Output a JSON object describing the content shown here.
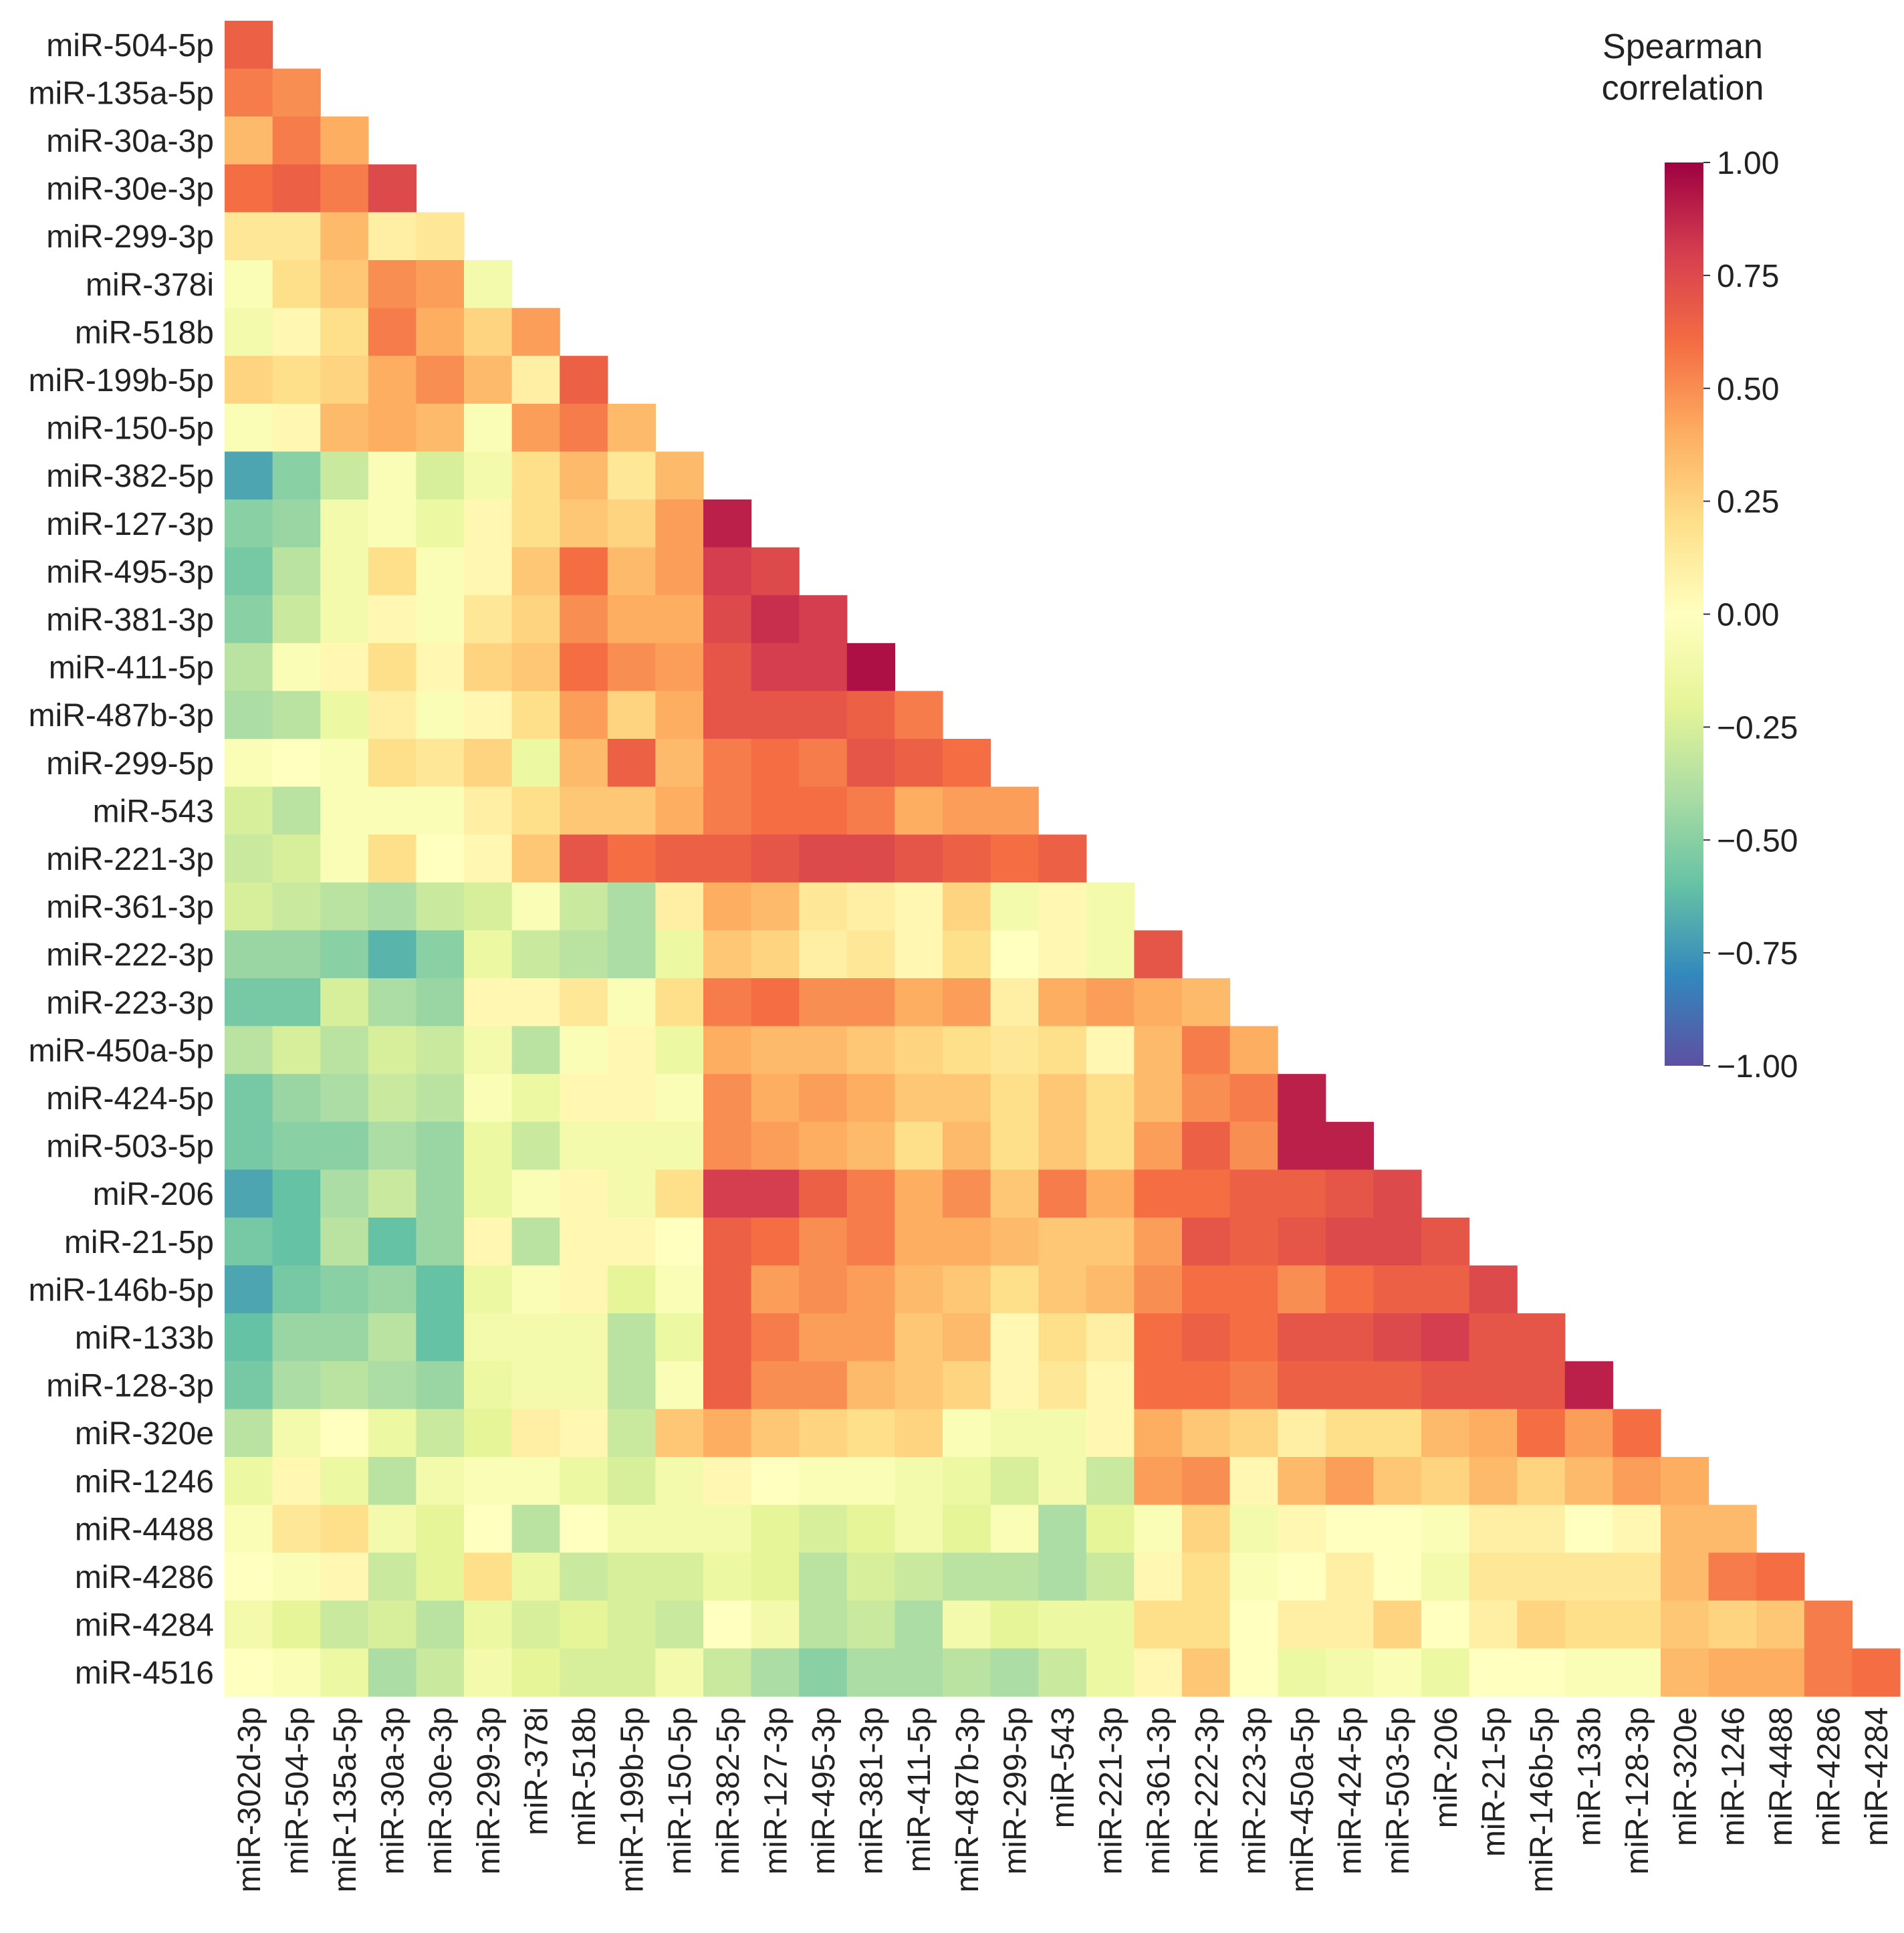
{
  "chart_data": {
    "type": "heatmap",
    "title": "",
    "colorbar": {
      "title_lines": [
        "Spearman",
        "correlation"
      ],
      "tick_labels": [
        "1.00",
        "0.75",
        "0.50",
        "0.25",
        "0.00",
        "−0.25",
        "−0.50",
        "−0.75",
        "−1.00"
      ],
      "tick_values": [
        1.0,
        0.75,
        0.5,
        0.25,
        0.0,
        -0.25,
        -0.5,
        -0.75,
        -1.0
      ],
      "range": [
        -1.0,
        1.0
      ],
      "colormap": "Spectral_r"
    },
    "rows": [
      "miR-504-5p",
      "miR-135a-5p",
      "miR-30a-3p",
      "miR-30e-3p",
      "miR-299-3p",
      "miR-378i",
      "miR-518b",
      "miR-199b-5p",
      "miR-150-5p",
      "miR-382-5p",
      "miR-127-3p",
      "miR-495-3p",
      "miR-381-3p",
      "miR-411-5p",
      "miR-487b-3p",
      "miR-299-5p",
      "miR-543",
      "miR-221-3p",
      "miR-361-3p",
      "miR-222-3p",
      "miR-223-3p",
      "miR-450a-5p",
      "miR-424-5p",
      "miR-503-5p",
      "miR-206",
      "miR-21-5p",
      "miR-146b-5p",
      "miR-133b",
      "miR-128-3p",
      "miR-320e",
      "miR-1246",
      "miR-4488",
      "miR-4286",
      "miR-4284",
      "miR-4516"
    ],
    "columns": [
      "miR-302d-3p",
      "miR-504-5p",
      "miR-135a-5p",
      "miR-30a-3p",
      "miR-30e-3p",
      "miR-299-3p",
      "miR-378i",
      "miR-518b",
      "miR-199b-5p",
      "miR-150-5p",
      "miR-382-5p",
      "miR-127-3p",
      "miR-495-3p",
      "miR-381-3p",
      "miR-411-5p",
      "miR-487b-3p",
      "miR-299-5p",
      "miR-543",
      "miR-221-3p",
      "miR-361-3p",
      "miR-222-3p",
      "miR-223-3p",
      "miR-450a-5p",
      "miR-424-5p",
      "miR-503-5p",
      "miR-206",
      "miR-21-5p",
      "miR-146b-5p",
      "miR-133b",
      "miR-128-3p",
      "miR-320e",
      "miR-1246",
      "miR-4488",
      "miR-4286",
      "miR-4284"
    ],
    "values": [
      [
        0.65
      ],
      [
        0.55,
        0.5
      ],
      [
        0.35,
        0.55,
        0.4
      ],
      [
        0.6,
        0.65,
        0.55,
        0.75
      ],
      [
        0.15,
        0.15,
        0.35,
        0.1,
        0.15
      ],
      [
        -0.05,
        0.2,
        0.3,
        0.5,
        0.45,
        -0.1
      ],
      [
        -0.1,
        0.05,
        0.2,
        0.55,
        0.4,
        0.25,
        0.45
      ],
      [
        0.25,
        0.2,
        0.25,
        0.4,
        0.5,
        0.35,
        0.1,
        0.65
      ],
      [
        -0.05,
        0.05,
        0.35,
        0.4,
        0.35,
        -0.05,
        0.45,
        0.55,
        0.35
      ],
      [
        -0.7,
        -0.5,
        -0.3,
        -0.05,
        -0.25,
        -0.1,
        0.2,
        0.35,
        0.15,
        0.35
      ],
      [
        -0.5,
        -0.45,
        -0.1,
        -0.05,
        -0.15,
        0.05,
        0.2,
        0.3,
        0.25,
        0.45,
        0.9
      ],
      [
        -0.55,
        -0.35,
        -0.1,
        0.2,
        -0.05,
        0.05,
        0.3,
        0.6,
        0.35,
        0.45,
        0.8,
        0.75
      ],
      [
        -0.5,
        -0.3,
        -0.1,
        0.05,
        -0.05,
        0.15,
        0.25,
        0.5,
        0.4,
        0.4,
        0.75,
        0.85,
        0.8
      ],
      [
        -0.35,
        -0.05,
        0.05,
        0.2,
        0.05,
        0.25,
        0.3,
        0.6,
        0.5,
        0.45,
        0.7,
        0.8,
        0.8,
        0.95
      ],
      [
        -0.4,
        -0.35,
        -0.15,
        0.1,
        -0.05,
        0.05,
        0.2,
        0.45,
        0.25,
        0.4,
        0.7,
        0.7,
        0.7,
        0.65,
        0.55
      ],
      [
        -0.05,
        0.0,
        -0.05,
        0.2,
        0.15,
        0.25,
        -0.15,
        0.35,
        0.65,
        0.35,
        0.55,
        0.6,
        0.55,
        0.7,
        0.65,
        0.6
      ],
      [
        -0.25,
        -0.35,
        -0.05,
        -0.05,
        -0.05,
        0.1,
        0.2,
        0.3,
        0.3,
        0.4,
        0.55,
        0.6,
        0.6,
        0.55,
        0.4,
        0.45,
        0.45
      ],
      [
        -0.3,
        -0.25,
        -0.05,
        0.2,
        0.0,
        0.05,
        0.3,
        0.7,
        0.6,
        0.65,
        0.65,
        0.7,
        0.75,
        0.75,
        0.7,
        0.65,
        0.6,
        0.65
      ],
      [
        -0.25,
        -0.3,
        -0.35,
        -0.4,
        -0.3,
        -0.25,
        -0.05,
        -0.3,
        -0.4,
        0.1,
        0.4,
        0.35,
        0.15,
        0.1,
        0.05,
        0.25,
        -0.1,
        0.05,
        -0.1
      ],
      [
        -0.45,
        -0.45,
        -0.5,
        -0.65,
        -0.5,
        -0.15,
        -0.3,
        -0.35,
        -0.4,
        -0.15,
        0.3,
        0.25,
        0.1,
        0.15,
        0.05,
        0.2,
        0.0,
        0.05,
        -0.1,
        0.7
      ],
      [
        -0.55,
        -0.55,
        -0.25,
        -0.4,
        -0.45,
        0.05,
        0.05,
        0.15,
        -0.05,
        0.2,
        0.55,
        0.6,
        0.5,
        0.5,
        0.4,
        0.45,
        0.1,
        0.4,
        0.45,
        0.4,
        0.35
      ],
      [
        -0.35,
        -0.25,
        -0.35,
        -0.25,
        -0.3,
        -0.1,
        -0.35,
        -0.05,
        0.05,
        -0.15,
        0.4,
        0.35,
        0.35,
        0.3,
        0.25,
        0.2,
        0.15,
        0.2,
        0.05,
        0.35,
        0.55,
        0.4
      ],
      [
        -0.55,
        -0.45,
        -0.4,
        -0.3,
        -0.35,
        -0.05,
        -0.15,
        0.05,
        0.05,
        -0.05,
        0.5,
        0.4,
        0.45,
        0.4,
        0.3,
        0.3,
        0.2,
        0.3,
        0.2,
        0.35,
        0.5,
        0.55,
        0.9
      ],
      [
        -0.55,
        -0.5,
        -0.5,
        -0.4,
        -0.45,
        -0.15,
        -0.3,
        -0.1,
        -0.1,
        -0.1,
        0.5,
        0.45,
        0.4,
        0.35,
        0.2,
        0.35,
        0.2,
        0.3,
        0.2,
        0.45,
        0.65,
        0.5,
        0.9,
        0.9
      ],
      [
        -0.7,
        -0.6,
        -0.4,
        -0.3,
        -0.45,
        -0.15,
        -0.05,
        0.05,
        -0.1,
        0.2,
        0.8,
        0.8,
        0.65,
        0.55,
        0.4,
        0.5,
        0.3,
        0.55,
        0.4,
        0.6,
        0.6,
        0.65,
        0.65,
        0.7,
        0.75
      ],
      [
        -0.55,
        -0.6,
        -0.35,
        -0.6,
        -0.45,
        0.05,
        -0.35,
        0.05,
        0.05,
        0.0,
        0.65,
        0.6,
        0.5,
        0.55,
        0.4,
        0.4,
        0.35,
        0.3,
        0.3,
        0.45,
        0.7,
        0.65,
        0.7,
        0.75,
        0.75,
        0.7
      ],
      [
        -0.7,
        -0.55,
        -0.5,
        -0.45,
        -0.6,
        -0.15,
        -0.05,
        0.05,
        -0.2,
        -0.05,
        0.65,
        0.45,
        0.5,
        0.45,
        0.35,
        0.3,
        0.2,
        0.3,
        0.35,
        0.5,
        0.6,
        0.6,
        0.5,
        0.6,
        0.65,
        0.65,
        0.75
      ],
      [
        -0.6,
        -0.45,
        -0.45,
        -0.35,
        -0.6,
        -0.1,
        -0.1,
        -0.1,
        -0.35,
        -0.15,
        0.65,
        0.55,
        0.45,
        0.45,
        0.3,
        0.35,
        0.05,
        0.2,
        0.1,
        0.6,
        0.65,
        0.6,
        0.7,
        0.7,
        0.75,
        0.8,
        0.7,
        0.7
      ],
      [
        -0.55,
        -0.4,
        -0.35,
        -0.4,
        -0.45,
        -0.15,
        -0.1,
        -0.1,
        -0.35,
        -0.05,
        0.65,
        0.5,
        0.5,
        0.35,
        0.3,
        0.25,
        0.05,
        0.15,
        0.05,
        0.6,
        0.6,
        0.55,
        0.65,
        0.65,
        0.65,
        0.7,
        0.7,
        0.7,
        0.9
      ],
      [
        -0.35,
        -0.1,
        0.0,
        -0.15,
        -0.3,
        -0.2,
        0.1,
        0.05,
        -0.3,
        0.3,
        0.4,
        0.3,
        0.25,
        0.2,
        0.25,
        -0.05,
        -0.1,
        -0.1,
        0.05,
        0.4,
        0.3,
        0.25,
        0.1,
        0.2,
        0.2,
        0.35,
        0.4,
        0.6,
        0.45,
        0.6
      ],
      [
        -0.15,
        0.05,
        -0.15,
        -0.35,
        -0.1,
        -0.05,
        -0.05,
        -0.15,
        -0.25,
        -0.1,
        0.05,
        0.0,
        -0.05,
        -0.05,
        -0.1,
        -0.15,
        -0.25,
        -0.1,
        -0.3,
        0.45,
        0.5,
        0.05,
        0.35,
        0.45,
        0.3,
        0.25,
        0.35,
        0.25,
        0.35,
        0.45,
        0.4
      ],
      [
        -0.05,
        0.15,
        0.2,
        -0.1,
        -0.2,
        0.0,
        -0.35,
        0.0,
        -0.1,
        -0.1,
        -0.1,
        -0.2,
        -0.25,
        -0.2,
        -0.1,
        -0.2,
        -0.05,
        -0.4,
        -0.2,
        -0.05,
        0.25,
        -0.1,
        0.05,
        0.0,
        0.0,
        -0.05,
        0.1,
        0.1,
        0.0,
        0.05,
        0.35,
        0.35
      ],
      [
        0.0,
        -0.05,
        0.05,
        -0.3,
        -0.2,
        0.2,
        -0.15,
        -0.3,
        -0.25,
        -0.25,
        -0.15,
        -0.2,
        -0.35,
        -0.25,
        -0.3,
        -0.35,
        -0.35,
        -0.4,
        -0.3,
        0.05,
        0.2,
        -0.05,
        0.0,
        0.1,
        0.0,
        -0.1,
        0.15,
        0.15,
        0.15,
        0.15,
        0.35,
        0.55,
        0.6
      ],
      [
        -0.1,
        -0.2,
        -0.3,
        -0.25,
        -0.35,
        -0.15,
        -0.25,
        -0.2,
        -0.25,
        -0.3,
        0.0,
        -0.1,
        -0.35,
        -0.3,
        -0.4,
        -0.1,
        -0.2,
        -0.15,
        -0.15,
        0.2,
        0.2,
        0.0,
        0.1,
        0.1,
        0.25,
        0.0,
        0.1,
        0.25,
        0.2,
        0.2,
        0.3,
        0.25,
        0.3,
        0.55
      ],
      [
        0.0,
        -0.05,
        -0.15,
        -0.4,
        -0.3,
        -0.1,
        -0.2,
        -0.25,
        -0.25,
        -0.1,
        -0.3,
        -0.4,
        -0.5,
        -0.4,
        -0.4,
        -0.35,
        -0.4,
        -0.3,
        -0.15,
        0.05,
        0.3,
        0.0,
        -0.15,
        -0.1,
        -0.05,
        -0.15,
        0.0,
        0.0,
        -0.05,
        -0.05,
        0.35,
        0.4,
        0.4,
        0.55,
        0.6
      ]
    ]
  }
}
